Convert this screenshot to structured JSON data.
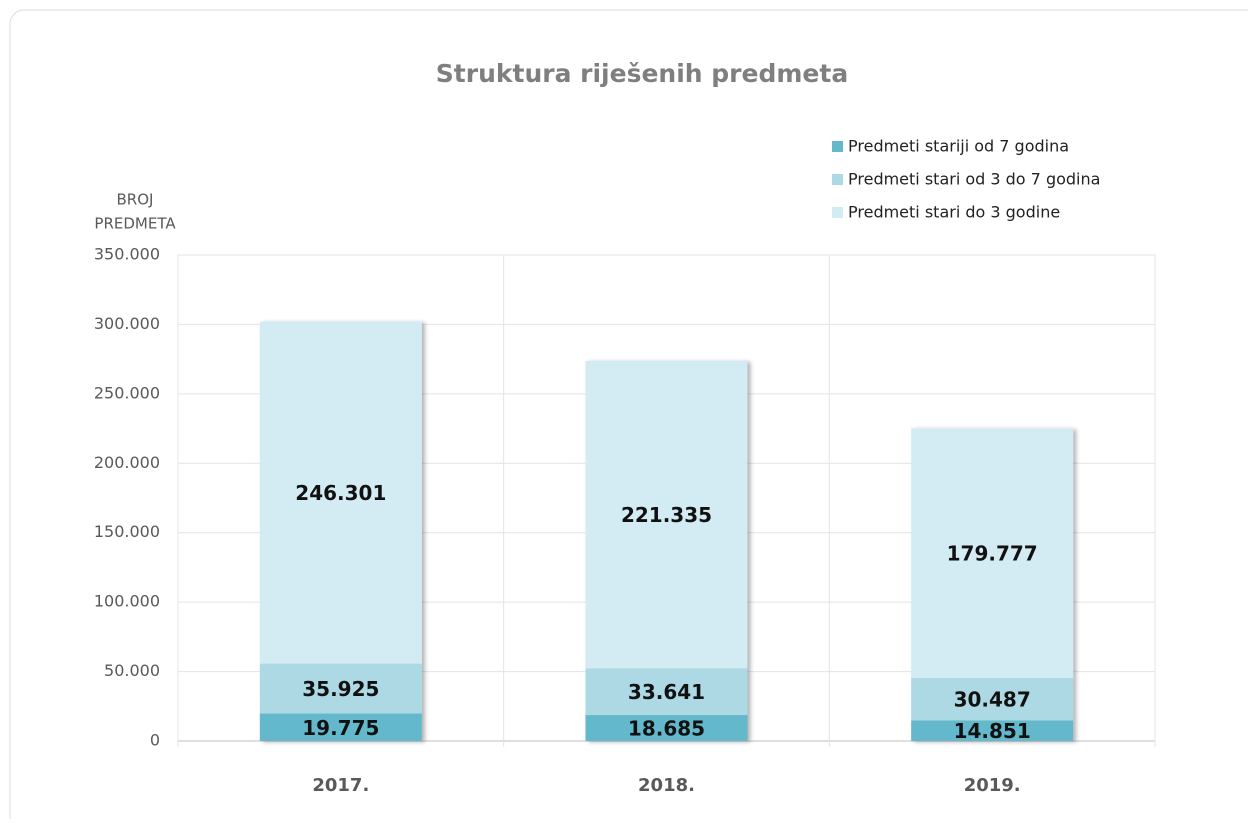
{
  "chart_data": {
    "type": "stacked_bar",
    "title": "Struktura riješenih predmeta",
    "ylabel": [
      "BROJ",
      "PREDMETA"
    ],
    "categories": [
      "2017.",
      "2018.",
      "2019."
    ],
    "series": [
      {
        "name": "Predmeti stariji od 7 godina",
        "color": "#63b8cc",
        "values": [
          19775,
          18685,
          14851
        ],
        "value_labels": [
          "19.775",
          "18.685",
          "14.851"
        ]
      },
      {
        "name": "Predmeti stari od 3 do 7 godina",
        "color": "#acd9e4",
        "values": [
          35925,
          33641,
          30487
        ],
        "value_labels": [
          "35.925",
          "33.641",
          "30.487"
        ]
      },
      {
        "name": "Predmeti stari do 3 godine",
        "color": "#d3ebf2",
        "values": [
          246301,
          221335,
          179777
        ],
        "value_labels": [
          "246.301",
          "221.335",
          "179.777"
        ]
      }
    ],
    "ylim": [
      0,
      350000
    ],
    "yticks": [
      0,
      {
        "value": 50000,
        "label": "50.000"
      },
      {
        "value": 100000,
        "label": "100.000"
      },
      {
        "value": 150000,
        "label": "150.000"
      },
      {
        "value": 200000,
        "label": "200.000"
      },
      {
        "value": 250000,
        "label": "250.000"
      },
      {
        "value": 300000,
        "label": "300.000"
      },
      {
        "value": 350000,
        "label": "350.000"
      }
    ],
    "grid": true,
    "legend": "top-right"
  }
}
